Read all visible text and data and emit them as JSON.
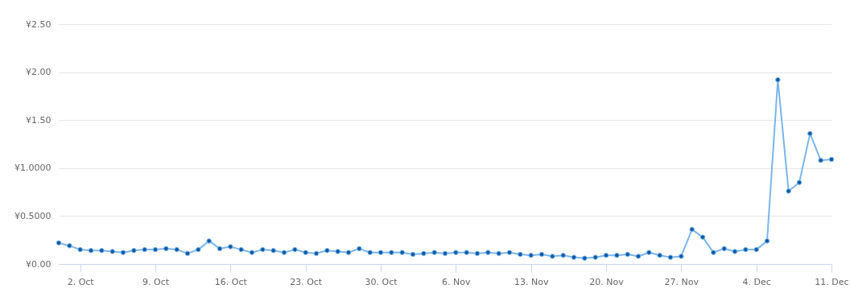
{
  "chart_data": {
    "type": "line",
    "x": [
      "--09-30",
      "--10-01",
      "--10-02",
      "--10-03",
      "--10-04",
      "--10-05",
      "--10-06",
      "--10-07",
      "--10-08",
      "--10-09",
      "--10-10",
      "--10-11",
      "--10-12",
      "--10-13",
      "--10-14",
      "--10-15",
      "--10-16",
      "--10-17",
      "--10-18",
      "--10-19",
      "--10-20",
      "--10-21",
      "--10-22",
      "--10-23",
      "--10-24",
      "--10-25",
      "--10-26",
      "--10-27",
      "--10-28",
      "--10-29",
      "--10-30",
      "--10-31",
      "--11-01",
      "--11-02",
      "--11-03",
      "--11-04",
      "--11-05",
      "--11-06",
      "--11-07",
      "--11-08",
      "--11-09",
      "--11-10",
      "--11-11",
      "--11-12",
      "--11-13",
      "--11-14",
      "--11-15",
      "--11-16",
      "--11-17",
      "--11-18",
      "--11-19",
      "--11-20",
      "--11-21",
      "--11-22",
      "--11-23",
      "--11-24",
      "--11-25",
      "--11-26",
      "--11-27",
      "--11-28",
      "--11-29",
      "--11-30",
      "--12-01",
      "--12-02",
      "--12-03",
      "--12-04",
      "--12-05",
      "--12-06",
      "--12-07",
      "--12-08",
      "--12-09",
      "--12-10",
      "--12-11"
    ],
    "series": [
      {
        "color": "#7cb5ec",
        "values": [
          0.22,
          0.19,
          0.15,
          0.14,
          0.14,
          0.13,
          0.12,
          0.14,
          0.15,
          0.15,
          0.16,
          0.15,
          0.11,
          0.15,
          0.24,
          0.16,
          0.18,
          0.15,
          0.12,
          0.15,
          0.14,
          0.12,
          0.15,
          0.12,
          0.11,
          0.14,
          0.13,
          0.12,
          0.16,
          0.12,
          0.12,
          0.12,
          0.12,
          0.1,
          0.11,
          0.12,
          0.11,
          0.12,
          0.12,
          0.11,
          0.12,
          0.11,
          0.12,
          0.1,
          0.09,
          0.1,
          0.08,
          0.09,
          0.07,
          0.06,
          0.07,
          0.09,
          0.09,
          0.1,
          0.08,
          0.12,
          0.09,
          0.07,
          0.08,
          0.36,
          0.28,
          0.12,
          0.16,
          0.13,
          0.15,
          0.15,
          0.24,
          1.92,
          0.76,
          0.85,
          1.36,
          1.08,
          1.09
        ]
      }
    ],
    "xlim": [
      "--09-30",
      "--12-11"
    ],
    "xticks": [
      {
        "value": "--10-02",
        "label": "2. Oct"
      },
      {
        "value": "--10-09",
        "label": "9. Oct"
      },
      {
        "value": "--10-16",
        "label": "16. Oct"
      },
      {
        "value": "--10-23",
        "label": "23. Oct"
      },
      {
        "value": "--10-30",
        "label": "30. Oct"
      },
      {
        "value": "--11-06",
        "label": "6. Nov"
      },
      {
        "value": "--11-13",
        "label": "13. Nov"
      },
      {
        "value": "--11-20",
        "label": "20. Nov"
      },
      {
        "value": "--11-27",
        "label": "27. Nov"
      },
      {
        "value": "--12-04",
        "label": "4. Dec"
      },
      {
        "value": "--12-11",
        "label": "11. Dec"
      }
    ],
    "ylim": [
      0,
      2.5
    ],
    "yticks": [
      {
        "value": 0,
        "label": "¥0.00"
      },
      {
        "value": 0.5,
        "label": "¥0.5000"
      },
      {
        "value": 1,
        "label": "¥1.0000"
      },
      {
        "value": 1.5,
        "label": "¥1.50"
      },
      {
        "value": 2,
        "label": "¥2.00"
      },
      {
        "value": 2.5,
        "label": "¥2.50"
      }
    ],
    "grid": "y",
    "marker": "circle",
    "line_style": "solid"
  }
}
